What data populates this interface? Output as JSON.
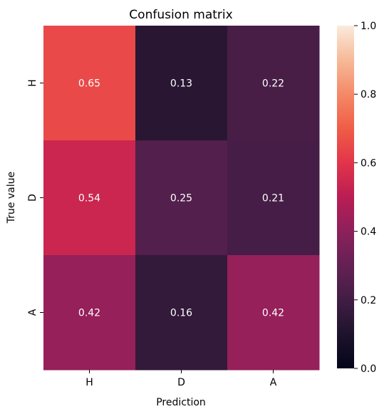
{
  "chart_data": {
    "type": "heatmap",
    "title": "Confusion matrix",
    "xlabel": "Prediction",
    "ylabel": "True value",
    "x_categories": [
      "H",
      "D",
      "A"
    ],
    "y_categories": [
      "H",
      "D",
      "A"
    ],
    "values": [
      [
        0.65,
        0.13,
        0.22
      ],
      [
        0.54,
        0.25,
        0.21
      ],
      [
        0.42,
        0.16,
        0.42
      ]
    ],
    "cell_labels": [
      [
        "0.65",
        "0.13",
        "0.22"
      ],
      [
        "0.54",
        "0.25",
        "0.21"
      ],
      [
        "0.42",
        "0.16",
        "0.42"
      ]
    ],
    "colorbar": {
      "range": [
        0.0,
        1.0
      ],
      "ticks": [
        0.0,
        0.2,
        0.4,
        0.6,
        0.8,
        1.0
      ],
      "tick_labels": [
        "0.0",
        "0.2",
        "0.4",
        "0.6",
        "0.8",
        "1.0"
      ],
      "colormap": "rocket"
    },
    "annotation_color": "#ffffff"
  }
}
